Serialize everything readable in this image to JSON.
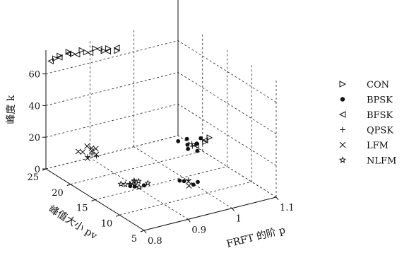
{
  "chart_data": {
    "type": "scatter3d",
    "x_axis": {
      "label": "FRFT 的阶 p",
      "range": [
        0.8,
        1.1
      ],
      "ticks": [
        "0.8",
        "0.9",
        "1",
        "1.1"
      ]
    },
    "y_axis": {
      "label": "峰值大小 pv",
      "range": [
        5,
        25
      ],
      "ticks": [
        "5",
        "10",
        "15",
        "20",
        "25"
      ]
    },
    "z_axis": {
      "label": "峰度 k",
      "range": [
        0,
        75
      ],
      "ticks": [
        "0",
        "20",
        "40",
        "60"
      ]
    },
    "grid": true,
    "legend_position": "right",
    "series": [
      {
        "name": "CON",
        "marker": "triangle-right",
        "points": [
          [
            0.81,
            24,
            71
          ],
          [
            0.82,
            24,
            72
          ],
          [
            0.84,
            24,
            73
          ],
          [
            0.85,
            24,
            71
          ],
          [
            0.87,
            24,
            72
          ],
          [
            0.88,
            24,
            70
          ],
          [
            0.9,
            24,
            71
          ],
          [
            0.92,
            24,
            68
          ],
          [
            0.93,
            24,
            69
          ],
          [
            0.95,
            24,
            66
          ],
          [
            1.05,
            15,
            19
          ],
          [
            1.06,
            15,
            21
          ]
        ]
      },
      {
        "name": "BPSK",
        "marker": "dot",
        "points": [
          [
            1.0,
            16,
            21
          ],
          [
            1.01,
            15,
            20
          ],
          [
            1.02,
            14,
            22
          ],
          [
            1.03,
            15,
            19
          ],
          [
            1.0,
            14,
            20
          ],
          [
            1.02,
            16,
            21
          ],
          [
            1.04,
            15,
            22
          ],
          [
            1.01,
            13,
            20
          ],
          [
            0.97,
            13,
            4
          ],
          [
            0.98,
            13,
            3
          ],
          [
            0.99,
            12,
            2
          ],
          [
            1.0,
            12,
            3
          ],
          [
            0.88,
            15,
            3
          ],
          [
            0.89,
            15,
            2
          ],
          [
            0.9,
            14,
            4
          ]
        ]
      },
      {
        "name": "BFSK",
        "marker": "triangle-left",
        "points": [
          [
            0.8,
            24,
            70
          ],
          [
            0.82,
            24,
            71
          ],
          [
            0.84,
            24,
            72
          ],
          [
            0.86,
            24,
            70
          ],
          [
            0.89,
            24,
            69
          ],
          [
            0.91,
            24,
            70
          ],
          [
            0.93,
            24,
            67
          ],
          [
            0.95,
            24,
            68
          ],
          [
            1.03,
            15,
            18
          ],
          [
            1.05,
            15,
            20
          ]
        ]
      },
      {
        "name": "QPSK",
        "marker": "plus",
        "points": [
          [
            0.85,
            21,
            12
          ],
          [
            0.86,
            21,
            13
          ],
          [
            0.87,
            21,
            11
          ],
          [
            1.01,
            14,
            21
          ],
          [
            1.02,
            15,
            20
          ],
          [
            0.99,
            13,
            3
          ],
          [
            0.89,
            16,
            2
          ],
          [
            0.9,
            16,
            3
          ]
        ]
      },
      {
        "name": "LFM",
        "marker": "cross",
        "points": [
          [
            0.84,
            22,
            14
          ],
          [
            0.85,
            22,
            13
          ],
          [
            0.86,
            21,
            15
          ],
          [
            0.87,
            21,
            12
          ],
          [
            0.88,
            22,
            13
          ],
          [
            0.86,
            22,
            16
          ],
          [
            0.85,
            21,
            11
          ],
          [
            0.87,
            22,
            14
          ],
          [
            0.98,
            12,
            2
          ],
          [
            0.99,
            13,
            2
          ]
        ]
      },
      {
        "name": "NLFM",
        "marker": "star",
        "points": [
          [
            0.87,
            16,
            3
          ],
          [
            0.88,
            16,
            2
          ],
          [
            0.89,
            15,
            3
          ],
          [
            0.9,
            15,
            1
          ],
          [
            0.91,
            16,
            2
          ],
          [
            0.88,
            15,
            4
          ],
          [
            0.9,
            16,
            3
          ],
          [
            0.92,
            15,
            2
          ]
        ]
      }
    ]
  }
}
